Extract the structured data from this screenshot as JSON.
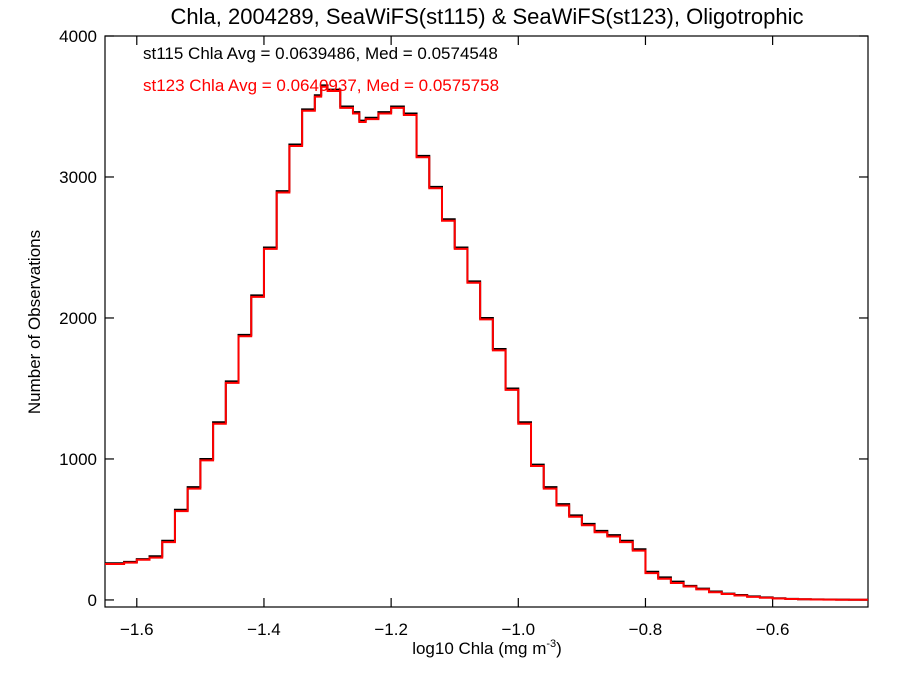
{
  "chart_data": {
    "type": "line",
    "title": "Chla, 2004289, SeaWiFS(st115) & SeaWiFS(st123), Oligotrophic",
    "xlabel": "log10 Chla (mg m",
    "xlabel_sup": "-3",
    "xlabel_suffix": ")",
    "ylabel": "Number of Observations",
    "xlim": [
      -1.65,
      -0.45
    ],
    "ylim": [
      -50,
      4000
    ],
    "x_ticks": [
      -1.6,
      -1.4,
      -1.2,
      -1.0,
      -0.8,
      -0.6
    ],
    "x_tick_labels": [
      "−1.6",
      "−1.4",
      "−1.2",
      "−1.0",
      "−0.8",
      "−0.6"
    ],
    "y_ticks": [
      0,
      1000,
      2000,
      3000,
      4000
    ],
    "y_tick_labels": [
      "0",
      "1000",
      "2000",
      "3000",
      "4000"
    ],
    "x": [
      -1.65,
      -1.62,
      -1.6,
      -1.58,
      -1.56,
      -1.54,
      -1.52,
      -1.5,
      -1.48,
      -1.46,
      -1.44,
      -1.42,
      -1.4,
      -1.38,
      -1.36,
      -1.34,
      -1.32,
      -1.31,
      -1.3,
      -1.28,
      -1.26,
      -1.25,
      -1.24,
      -1.22,
      -1.2,
      -1.18,
      -1.16,
      -1.14,
      -1.12,
      -1.1,
      -1.08,
      -1.06,
      -1.04,
      -1.02,
      -1.0,
      -0.98,
      -0.96,
      -0.94,
      -0.92,
      -0.9,
      -0.88,
      -0.86,
      -0.84,
      -0.82,
      -0.8,
      -0.78,
      -0.76,
      -0.74,
      -0.72,
      -0.7,
      -0.68,
      -0.66,
      -0.64,
      -0.62,
      -0.6,
      -0.58,
      -0.56,
      -0.54,
      -0.52,
      -0.5,
      -0.48,
      -0.46,
      -0.45
    ],
    "series": [
      {
        "name": "st115",
        "color": "#000000",
        "values": [
          260,
          270,
          290,
          310,
          420,
          640,
          800,
          1000,
          1260,
          1550,
          1880,
          2160,
          2500,
          2900,
          3230,
          3480,
          3580,
          3650,
          3620,
          3500,
          3460,
          3400,
          3420,
          3460,
          3500,
          3450,
          3150,
          2930,
          2700,
          2500,
          2260,
          2000,
          1780,
          1500,
          1260,
          960,
          800,
          680,
          600,
          540,
          490,
          460,
          420,
          360,
          200,
          160,
          130,
          100,
          80,
          60,
          45,
          35,
          25,
          18,
          12,
          8,
          5,
          4,
          3,
          2,
          1,
          1,
          1
        ]
      },
      {
        "name": "st123",
        "color": "#ff0000",
        "values": [
          255,
          265,
          285,
          300,
          410,
          630,
          790,
          990,
          1250,
          1540,
          1870,
          2150,
          2490,
          2890,
          3220,
          3470,
          3570,
          3640,
          3610,
          3490,
          3450,
          3390,
          3410,
          3450,
          3490,
          3440,
          3140,
          2920,
          2690,
          2490,
          2250,
          1990,
          1770,
          1490,
          1250,
          950,
          790,
          670,
          590,
          530,
          480,
          450,
          410,
          350,
          190,
          150,
          120,
          95,
          75,
          55,
          42,
          32,
          22,
          16,
          10,
          7,
          5,
          3,
          2,
          1,
          1,
          1,
          1
        ]
      }
    ],
    "annotations": [
      {
        "text": "st115 Chla Avg = 0.0639486, Med = 0.0574548",
        "color": "#000000"
      },
      {
        "text": "st123 Chla Avg = 0.0640937, Med = 0.0575758",
        "color": "#ff0000"
      }
    ],
    "grid": false,
    "legend": "top-left annotations"
  }
}
